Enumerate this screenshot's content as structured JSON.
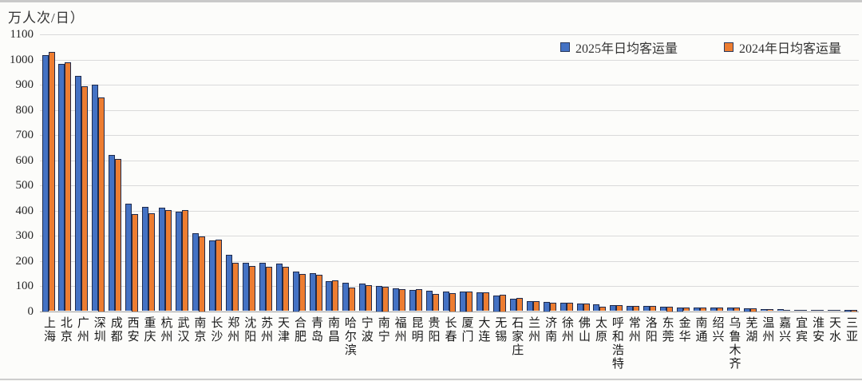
{
  "header": {
    "unit_label": "万人次/日）"
  },
  "legend": {
    "items": [
      {
        "label": "2025年日均客运量",
        "color": "#4472C4"
      },
      {
        "label": "2024年日均客运量",
        "color": "#ED7D31"
      }
    ]
  },
  "chart_data": {
    "type": "bar",
    "title": "",
    "xlabel": "",
    "ylabel": "万人次/日）",
    "ylim": [
      0,
      1100
    ],
    "ytick_step": 100,
    "grid": true,
    "legend_position": "top-right",
    "categories": [
      "上海",
      "北京",
      "广州",
      "深圳",
      "成都",
      "西安",
      "重庆",
      "杭州",
      "武汉",
      "南京",
      "长沙",
      "郑州",
      "沈阳",
      "苏州",
      "天津",
      "合肥",
      "青岛",
      "南昌",
      "哈尔滨",
      "宁波",
      "南宁",
      "福州",
      "昆明",
      "贵阳",
      "长春",
      "厦门",
      "大连",
      "无锡",
      "石家庄",
      "兰州",
      "济南",
      "徐州",
      "佛山",
      "太原",
      "呼和浩特",
      "常州",
      "洛阳",
      "东莞",
      "金华",
      "南通",
      "绍兴",
      "乌鲁木齐",
      "芜湖",
      "温州",
      "嘉兴",
      "宜宾",
      "淮安",
      "天水",
      "三亚"
    ],
    "series": [
      {
        "name": "2025年日均客运量",
        "color": "#4472C4",
        "values": [
          1020,
          983,
          937,
          900,
          620,
          427,
          415,
          411,
          396,
          310,
          280,
          225,
          193,
          191,
          188,
          159,
          152,
          120,
          113,
          110,
          100,
          90,
          85,
          82,
          79,
          78,
          76,
          62,
          48,
          39,
          38,
          33,
          30,
          28,
          24,
          21,
          21,
          17,
          16,
          15,
          14,
          13,
          11,
          9,
          7,
          6,
          6,
          5,
          4
        ]
      },
      {
        "name": "2024年日均客运量",
        "color": "#ED7D31",
        "values": [
          1032,
          990,
          893,
          850,
          606,
          386,
          390,
          401,
          403,
          297,
          283,
          191,
          180,
          175,
          176,
          148,
          144,
          122,
          95,
          103,
          97,
          88,
          86,
          69,
          73,
          78,
          74,
          65,
          52,
          39,
          33,
          33,
          29,
          18,
          24,
          21,
          20,
          19,
          15,
          14,
          15,
          13,
          11,
          9,
          6,
          6,
          5,
          5,
          3
        ]
      }
    ]
  }
}
